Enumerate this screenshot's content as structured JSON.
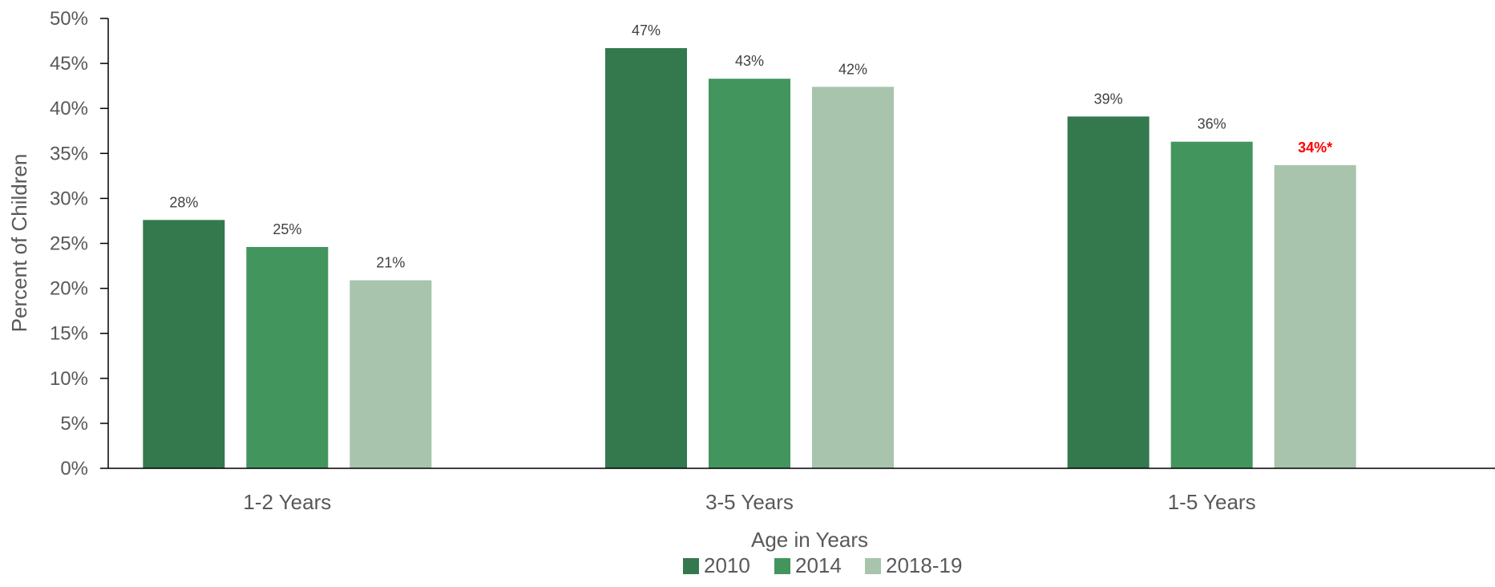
{
  "chart_data": {
    "type": "bar",
    "title": "",
    "xlabel": "Age in Years",
    "ylabel": "Percent of Children",
    "ylim": [
      0,
      50
    ],
    "y_ticks": [
      "0%",
      "5%",
      "10%",
      "15%",
      "20%",
      "25%",
      "30%",
      "35%",
      "40%",
      "45%",
      "50%"
    ],
    "categories": [
      "1-2 Years",
      "3-5 Years",
      "1-5 Years"
    ],
    "series": [
      {
        "name": "2010",
        "color": "#34794d",
        "values": [
          27.6,
          46.7,
          39.1
        ],
        "labels": [
          "28%",
          "47%",
          "39%"
        ]
      },
      {
        "name": "2014",
        "color": "#42955d",
        "values": [
          24.6,
          43.3,
          36.3
        ],
        "labels": [
          "25%",
          "43%",
          "36%"
        ]
      },
      {
        "name": "2018-19",
        "color": "#a8c4ac",
        "values": [
          20.9,
          42.4,
          33.7
        ],
        "labels": [
          "21%",
          "42%",
          "34%*"
        ],
        "highlight": [
          false,
          false,
          true
        ]
      }
    ],
    "highlight_color": "#ff0000",
    "grid": false,
    "legend_position": "bottom"
  }
}
